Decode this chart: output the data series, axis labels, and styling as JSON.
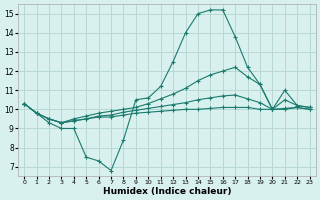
{
  "xlabel": "Humidex (Indice chaleur)",
  "background_color": "#d8f0ee",
  "grid_color": "#b8d8d4",
  "line_color": "#1a7a6e",
  "xlim": [
    -0.5,
    23.5
  ],
  "ylim": [
    6.5,
    15.5
  ],
  "xticks": [
    0,
    1,
    2,
    3,
    4,
    5,
    6,
    7,
    8,
    9,
    10,
    11,
    12,
    13,
    14,
    15,
    16,
    17,
    18,
    19,
    20,
    21,
    22,
    23
  ],
  "yticks": [
    7,
    8,
    9,
    10,
    11,
    12,
    13,
    14,
    15
  ],
  "series1_x": [
    0,
    1,
    2,
    3,
    4,
    5,
    6,
    7,
    8,
    9,
    10,
    11,
    12,
    13,
    14,
    15,
    16,
    17,
    18,
    19,
    20,
    21,
    22,
    23
  ],
  "series1_y": [
    10.3,
    9.8,
    9.3,
    9.0,
    9.0,
    7.5,
    7.3,
    6.8,
    8.4,
    10.5,
    10.6,
    11.2,
    12.5,
    14.0,
    15.0,
    15.2,
    15.2,
    13.8,
    12.2,
    11.3,
    10.0,
    11.0,
    10.2,
    10.1
  ],
  "series2_x": [
    0,
    1,
    2,
    3,
    4,
    5,
    6,
    7,
    8,
    9,
    10,
    11,
    12,
    13,
    14,
    15,
    16,
    17,
    18,
    19,
    20,
    21,
    22,
    23
  ],
  "series2_y": [
    10.3,
    9.8,
    9.5,
    9.3,
    9.4,
    9.5,
    9.6,
    9.6,
    9.7,
    9.8,
    9.85,
    9.9,
    9.95,
    10.0,
    10.0,
    10.05,
    10.1,
    10.1,
    10.1,
    10.0,
    10.0,
    10.0,
    10.1,
    10.0
  ],
  "series3_x": [
    0,
    1,
    2,
    3,
    4,
    5,
    6,
    7,
    8,
    9,
    10,
    11,
    12,
    13,
    14,
    15,
    16,
    17,
    18,
    19,
    20,
    21,
    22,
    23
  ],
  "series3_y": [
    10.3,
    9.8,
    9.5,
    9.3,
    9.4,
    9.5,
    9.65,
    9.7,
    9.85,
    9.95,
    10.05,
    10.15,
    10.25,
    10.35,
    10.5,
    10.6,
    10.7,
    10.75,
    10.55,
    10.35,
    10.0,
    10.05,
    10.1,
    10.0
  ],
  "series4_x": [
    0,
    1,
    2,
    3,
    4,
    5,
    6,
    7,
    8,
    9,
    10,
    11,
    12,
    13,
    14,
    15,
    16,
    17,
    18,
    19,
    20,
    21,
    22,
    23
  ],
  "series4_y": [
    10.3,
    9.8,
    9.5,
    9.3,
    9.5,
    9.65,
    9.8,
    9.9,
    10.0,
    10.1,
    10.3,
    10.55,
    10.8,
    11.1,
    11.5,
    11.8,
    12.0,
    12.2,
    11.7,
    11.3,
    10.0,
    10.5,
    10.2,
    10.1
  ]
}
